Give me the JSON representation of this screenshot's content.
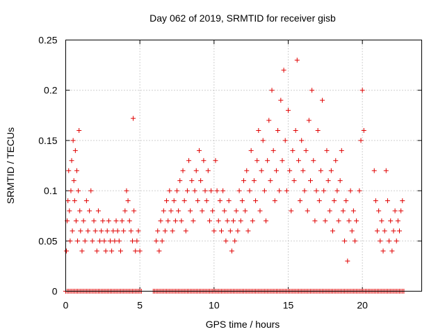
{
  "chart_data": {
    "type": "scatter",
    "title": "Day 062 of 2019, SRMTID for receiver gisb",
    "xlabel": "GPS time / hours",
    "ylabel": "SRMTID / TECUs",
    "xlim": [
      0,
      24
    ],
    "ylim": [
      0,
      0.25
    ],
    "x_ticks": [
      0,
      5,
      10,
      15,
      20
    ],
    "x_tick_labels": [
      "0",
      "5",
      "10",
      "15",
      "20"
    ],
    "y_ticks": [
      0,
      0.05,
      0.1,
      0.15,
      0.2,
      0.25
    ],
    "y_tick_labels": [
      "0",
      "0.05",
      "0.1",
      "0.15",
      "0.2",
      "0.25"
    ],
    "grid": true,
    "marker": "+",
    "color": "#e00000",
    "series": [
      {
        "name": "SRMTID",
        "points": [
          [
            0.05,
            0.04
          ],
          [
            0.1,
            0.07
          ],
          [
            0.15,
            0.09
          ],
          [
            0.2,
            0.12
          ],
          [
            0.25,
            0.08
          ],
          [
            0.3,
            0.05
          ],
          [
            0.35,
            0.1
          ],
          [
            0.4,
            0.13
          ],
          [
            0.45,
            0.06
          ],
          [
            0.5,
            0.15
          ],
          [
            0.55,
            0.11
          ],
          [
            0.6,
            0.09
          ],
          [
            0.65,
            0.14
          ],
          [
            0.7,
            0.07
          ],
          [
            0.75,
            0.12
          ],
          [
            0.8,
            0.05
          ],
          [
            0.85,
            0.1
          ],
          [
            0.9,
            0.16
          ],
          [
            0.95,
            0.08
          ],
          [
            1.0,
            0.06
          ],
          [
            1.1,
            0.04
          ],
          [
            1.2,
            0.07
          ],
          [
            1.3,
            0.05
          ],
          [
            1.4,
            0.09
          ],
          [
            1.5,
            0.06
          ],
          [
            1.6,
            0.08
          ],
          [
            1.7,
            0.1
          ],
          [
            1.8,
            0.05
          ],
          [
            1.9,
            0.07
          ],
          [
            2.0,
            0.06
          ],
          [
            2.1,
            0.04
          ],
          [
            2.2,
            0.08
          ],
          [
            2.3,
            0.05
          ],
          [
            2.4,
            0.06
          ],
          [
            2.5,
            0.07
          ],
          [
            2.6,
            0.05
          ],
          [
            2.7,
            0.04
          ],
          [
            2.8,
            0.06
          ],
          [
            2.9,
            0.07
          ],
          [
            3.0,
            0.05
          ],
          [
            3.1,
            0.04
          ],
          [
            3.2,
            0.06
          ],
          [
            3.3,
            0.05
          ],
          [
            3.4,
            0.07
          ],
          [
            3.5,
            0.06
          ],
          [
            3.6,
            0.05
          ],
          [
            3.7,
            0.04
          ],
          [
            3.8,
            0.07
          ],
          [
            3.9,
            0.06
          ],
          [
            4.0,
            0.08
          ],
          [
            4.1,
            0.1
          ],
          [
            4.2,
            0.09
          ],
          [
            4.3,
            0.07
          ],
          [
            4.4,
            0.06
          ],
          [
            4.5,
            0.05
          ],
          [
            4.55,
            0.172
          ],
          [
            4.6,
            0.08
          ],
          [
            4.7,
            0.04
          ],
          [
            4.8,
            0.05
          ],
          [
            4.9,
            0.06
          ],
          [
            5.0,
            0.04
          ],
          [
            6.1,
            0.05
          ],
          [
            6.2,
            0.06
          ],
          [
            6.3,
            0.04
          ],
          [
            6.4,
            0.07
          ],
          [
            6.5,
            0.05
          ],
          [
            6.6,
            0.08
          ],
          [
            6.7,
            0.06
          ],
          [
            6.8,
            0.09
          ],
          [
            6.9,
            0.07
          ],
          [
            7.0,
            0.1
          ],
          [
            7.1,
            0.08
          ],
          [
            7.2,
            0.06
          ],
          [
            7.3,
            0.09
          ],
          [
            7.4,
            0.07
          ],
          [
            7.5,
            0.1
          ],
          [
            7.6,
            0.08
          ],
          [
            7.7,
            0.11
          ],
          [
            7.8,
            0.07
          ],
          [
            7.9,
            0.12
          ],
          [
            8.0,
            0.09
          ],
          [
            8.1,
            0.06
          ],
          [
            8.2,
            0.1
          ],
          [
            8.3,
            0.13
          ],
          [
            8.4,
            0.08
          ],
          [
            8.5,
            0.11
          ],
          [
            8.6,
            0.07
          ],
          [
            8.7,
            0.1
          ],
          [
            8.8,
            0.12
          ],
          [
            8.9,
            0.09
          ],
          [
            9.0,
            0.14
          ],
          [
            9.1,
            0.11
          ],
          [
            9.2,
            0.08
          ],
          [
            9.3,
            0.13
          ],
          [
            9.4,
            0.1
          ],
          [
            9.5,
            0.09
          ],
          [
            9.6,
            0.12
          ],
          [
            9.7,
            0.07
          ],
          [
            9.8,
            0.1
          ],
          [
            9.9,
            0.08
          ],
          [
            10.0,
            0.06
          ],
          [
            10.1,
            0.13
          ],
          [
            10.2,
            0.1
          ],
          [
            10.3,
            0.07
          ],
          [
            10.4,
            0.09
          ],
          [
            10.5,
            0.06
          ],
          [
            10.6,
            0.1
          ],
          [
            10.7,
            0.08
          ],
          [
            10.8,
            0.05
          ],
          [
            10.9,
            0.07
          ],
          [
            11.0,
            0.09
          ],
          [
            11.1,
            0.06
          ],
          [
            11.2,
            0.04
          ],
          [
            11.3,
            0.07
          ],
          [
            11.4,
            0.05
          ],
          [
            11.5,
            0.08
          ],
          [
            11.6,
            0.06
          ],
          [
            11.7,
            0.1
          ],
          [
            11.8,
            0.07
          ],
          [
            11.9,
            0.09
          ],
          [
            12.0,
            0.11
          ],
          [
            12.1,
            0.08
          ],
          [
            12.2,
            0.12
          ],
          [
            12.3,
            0.06
          ],
          [
            12.4,
            0.1
          ],
          [
            12.5,
            0.14
          ],
          [
            12.6,
            0.07
          ],
          [
            12.7,
            0.11
          ],
          [
            12.8,
            0.09
          ],
          [
            12.9,
            0.13
          ],
          [
            13.0,
            0.16
          ],
          [
            13.1,
            0.08
          ],
          [
            13.2,
            0.12
          ],
          [
            13.3,
            0.15
          ],
          [
            13.4,
            0.1
          ],
          [
            13.5,
            0.07
          ],
          [
            13.6,
            0.13
          ],
          [
            13.7,
            0.17
          ],
          [
            13.8,
            0.11
          ],
          [
            13.9,
            0.2
          ],
          [
            14.0,
            0.14
          ],
          [
            14.1,
            0.09
          ],
          [
            14.2,
            0.12
          ],
          [
            14.3,
            0.16
          ],
          [
            14.4,
            0.1
          ],
          [
            14.5,
            0.19
          ],
          [
            14.6,
            0.13
          ],
          [
            14.7,
            0.22
          ],
          [
            14.8,
            0.15
          ],
          [
            14.9,
            0.1
          ],
          [
            15.0,
            0.18
          ],
          [
            15.1,
            0.12
          ],
          [
            15.2,
            0.08
          ],
          [
            15.3,
            0.14
          ],
          [
            15.4,
            0.11
          ],
          [
            15.5,
            0.16
          ],
          [
            15.6,
            0.23
          ],
          [
            15.7,
            0.13
          ],
          [
            15.8,
            0.09
          ],
          [
            15.9,
            0.15
          ],
          [
            16.0,
            0.12
          ],
          [
            16.1,
            0.1
          ],
          [
            16.2,
            0.14
          ],
          [
            16.3,
            0.08
          ],
          [
            16.4,
            0.17
          ],
          [
            16.5,
            0.11
          ],
          [
            16.6,
            0.2
          ],
          [
            16.7,
            0.13
          ],
          [
            16.8,
            0.07
          ],
          [
            16.9,
            0.1
          ],
          [
            17.0,
            0.16
          ],
          [
            17.1,
            0.09
          ],
          [
            17.2,
            0.12
          ],
          [
            17.3,
            0.19
          ],
          [
            17.4,
            0.1
          ],
          [
            17.5,
            0.07
          ],
          [
            17.6,
            0.14
          ],
          [
            17.7,
            0.11
          ],
          [
            17.8,
            0.08
          ],
          [
            17.9,
            0.12
          ],
          [
            18.0,
            0.06
          ],
          [
            18.1,
            0.09
          ],
          [
            18.2,
            0.13
          ],
          [
            18.3,
            0.1
          ],
          [
            18.4,
            0.07
          ],
          [
            18.5,
            0.11
          ],
          [
            18.6,
            0.14
          ],
          [
            18.7,
            0.08
          ],
          [
            18.8,
            0.05
          ],
          [
            18.9,
            0.09
          ],
          [
            19.0,
            0.03
          ],
          [
            19.1,
            0.07
          ],
          [
            19.2,
            0.1
          ],
          [
            19.3,
            0.06
          ],
          [
            19.4,
            0.08
          ],
          [
            19.5,
            0.05
          ],
          [
            19.6,
            0.07
          ],
          [
            19.8,
            0.1
          ],
          [
            19.9,
            0.15
          ],
          [
            20.0,
            0.2
          ],
          [
            20.1,
            0.16
          ],
          [
            20.8,
            0.12
          ],
          [
            20.9,
            0.09
          ],
          [
            21.0,
            0.06
          ],
          [
            21.1,
            0.08
          ],
          [
            21.2,
            0.05
          ],
          [
            21.3,
            0.07
          ],
          [
            21.4,
            0.04
          ],
          [
            21.5,
            0.06
          ],
          [
            21.6,
            0.12
          ],
          [
            21.7,
            0.09
          ],
          [
            21.8,
            0.05
          ],
          [
            21.9,
            0.07
          ],
          [
            22.0,
            0.04
          ],
          [
            22.1,
            0.06
          ],
          [
            22.2,
            0.08
          ],
          [
            22.3,
            0.05
          ],
          [
            22.4,
            0.07
          ],
          [
            22.5,
            0.06
          ],
          [
            22.6,
            0.08
          ],
          [
            22.7,
            0.09
          ]
        ]
      },
      {
        "name": "zero-values",
        "x_ranges": [
          [
            0.0,
            5.1
          ],
          [
            5.9,
            22.8
          ]
        ],
        "step": 0.1,
        "y": 0
      }
    ]
  }
}
